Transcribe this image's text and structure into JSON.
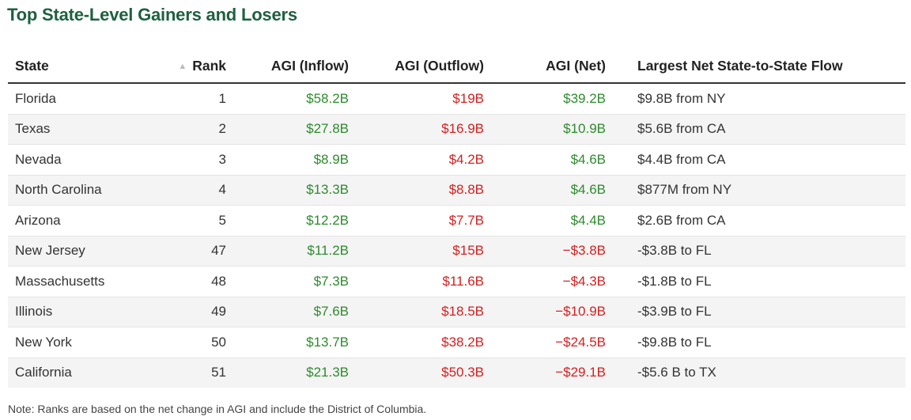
{
  "title": "Top State-Level Gainers and Losers",
  "headers": {
    "state": "State",
    "rank": "Rank",
    "inflow": "AGI (Inflow)",
    "outflow": "AGI (Outflow)",
    "net": "AGI (Net)",
    "flow": "Largest Net State-to-State Flow"
  },
  "sort_icon": "▲",
  "colors": {
    "title": "#1e6041",
    "positive": "#2e8b2e",
    "negative": "#d42020"
  },
  "rows": [
    {
      "state": "Florida",
      "rank": "1",
      "inflow": "$58.2B",
      "outflow": "$19B",
      "net": "$39.2B",
      "flow": "$9.8B from NY"
    },
    {
      "state": "Texas",
      "rank": "2",
      "inflow": "$27.8B",
      "outflow": "$16.9B",
      "net": "$10.9B",
      "flow": "$5.6B from CA"
    },
    {
      "state": "Nevada",
      "rank": "3",
      "inflow": "$8.9B",
      "outflow": "$4.2B",
      "net": "$4.6B",
      "flow": "$4.4B from CA"
    },
    {
      "state": "North Carolina",
      "rank": "4",
      "inflow": "$13.3B",
      "outflow": "$8.8B",
      "net": "$4.6B",
      "flow": "$877M from NY"
    },
    {
      "state": "Arizona",
      "rank": "5",
      "inflow": "$12.2B",
      "outflow": "$7.7B",
      "net": "$4.4B",
      "flow": "$2.6B from CA"
    },
    {
      "state": "New Jersey",
      "rank": "47",
      "inflow": "$11.2B",
      "outflow": "$15B",
      "net": "−$3.8B",
      "flow": "-$3.8B to FL"
    },
    {
      "state": "Massachusetts",
      "rank": "48",
      "inflow": "$7.3B",
      "outflow": "$11.6B",
      "net": "−$4.3B",
      "flow": "-$1.8B to FL"
    },
    {
      "state": "Illinois",
      "rank": "49",
      "inflow": "$7.6B",
      "outflow": "$18.5B",
      "net": "−$10.9B",
      "flow": "-$3.9B to FL"
    },
    {
      "state": "New York",
      "rank": "50",
      "inflow": "$13.7B",
      "outflow": "$38.2B",
      "net": "−$24.5B",
      "flow": "-$9.8B to FL"
    },
    {
      "state": "California",
      "rank": "51",
      "inflow": "$21.3B",
      "outflow": "$50.3B",
      "net": "−$29.1B",
      "flow": "-$5.6 B to TX"
    }
  ],
  "note": "Note: Ranks are based on the net change in AGI and include the District of Columbia."
}
